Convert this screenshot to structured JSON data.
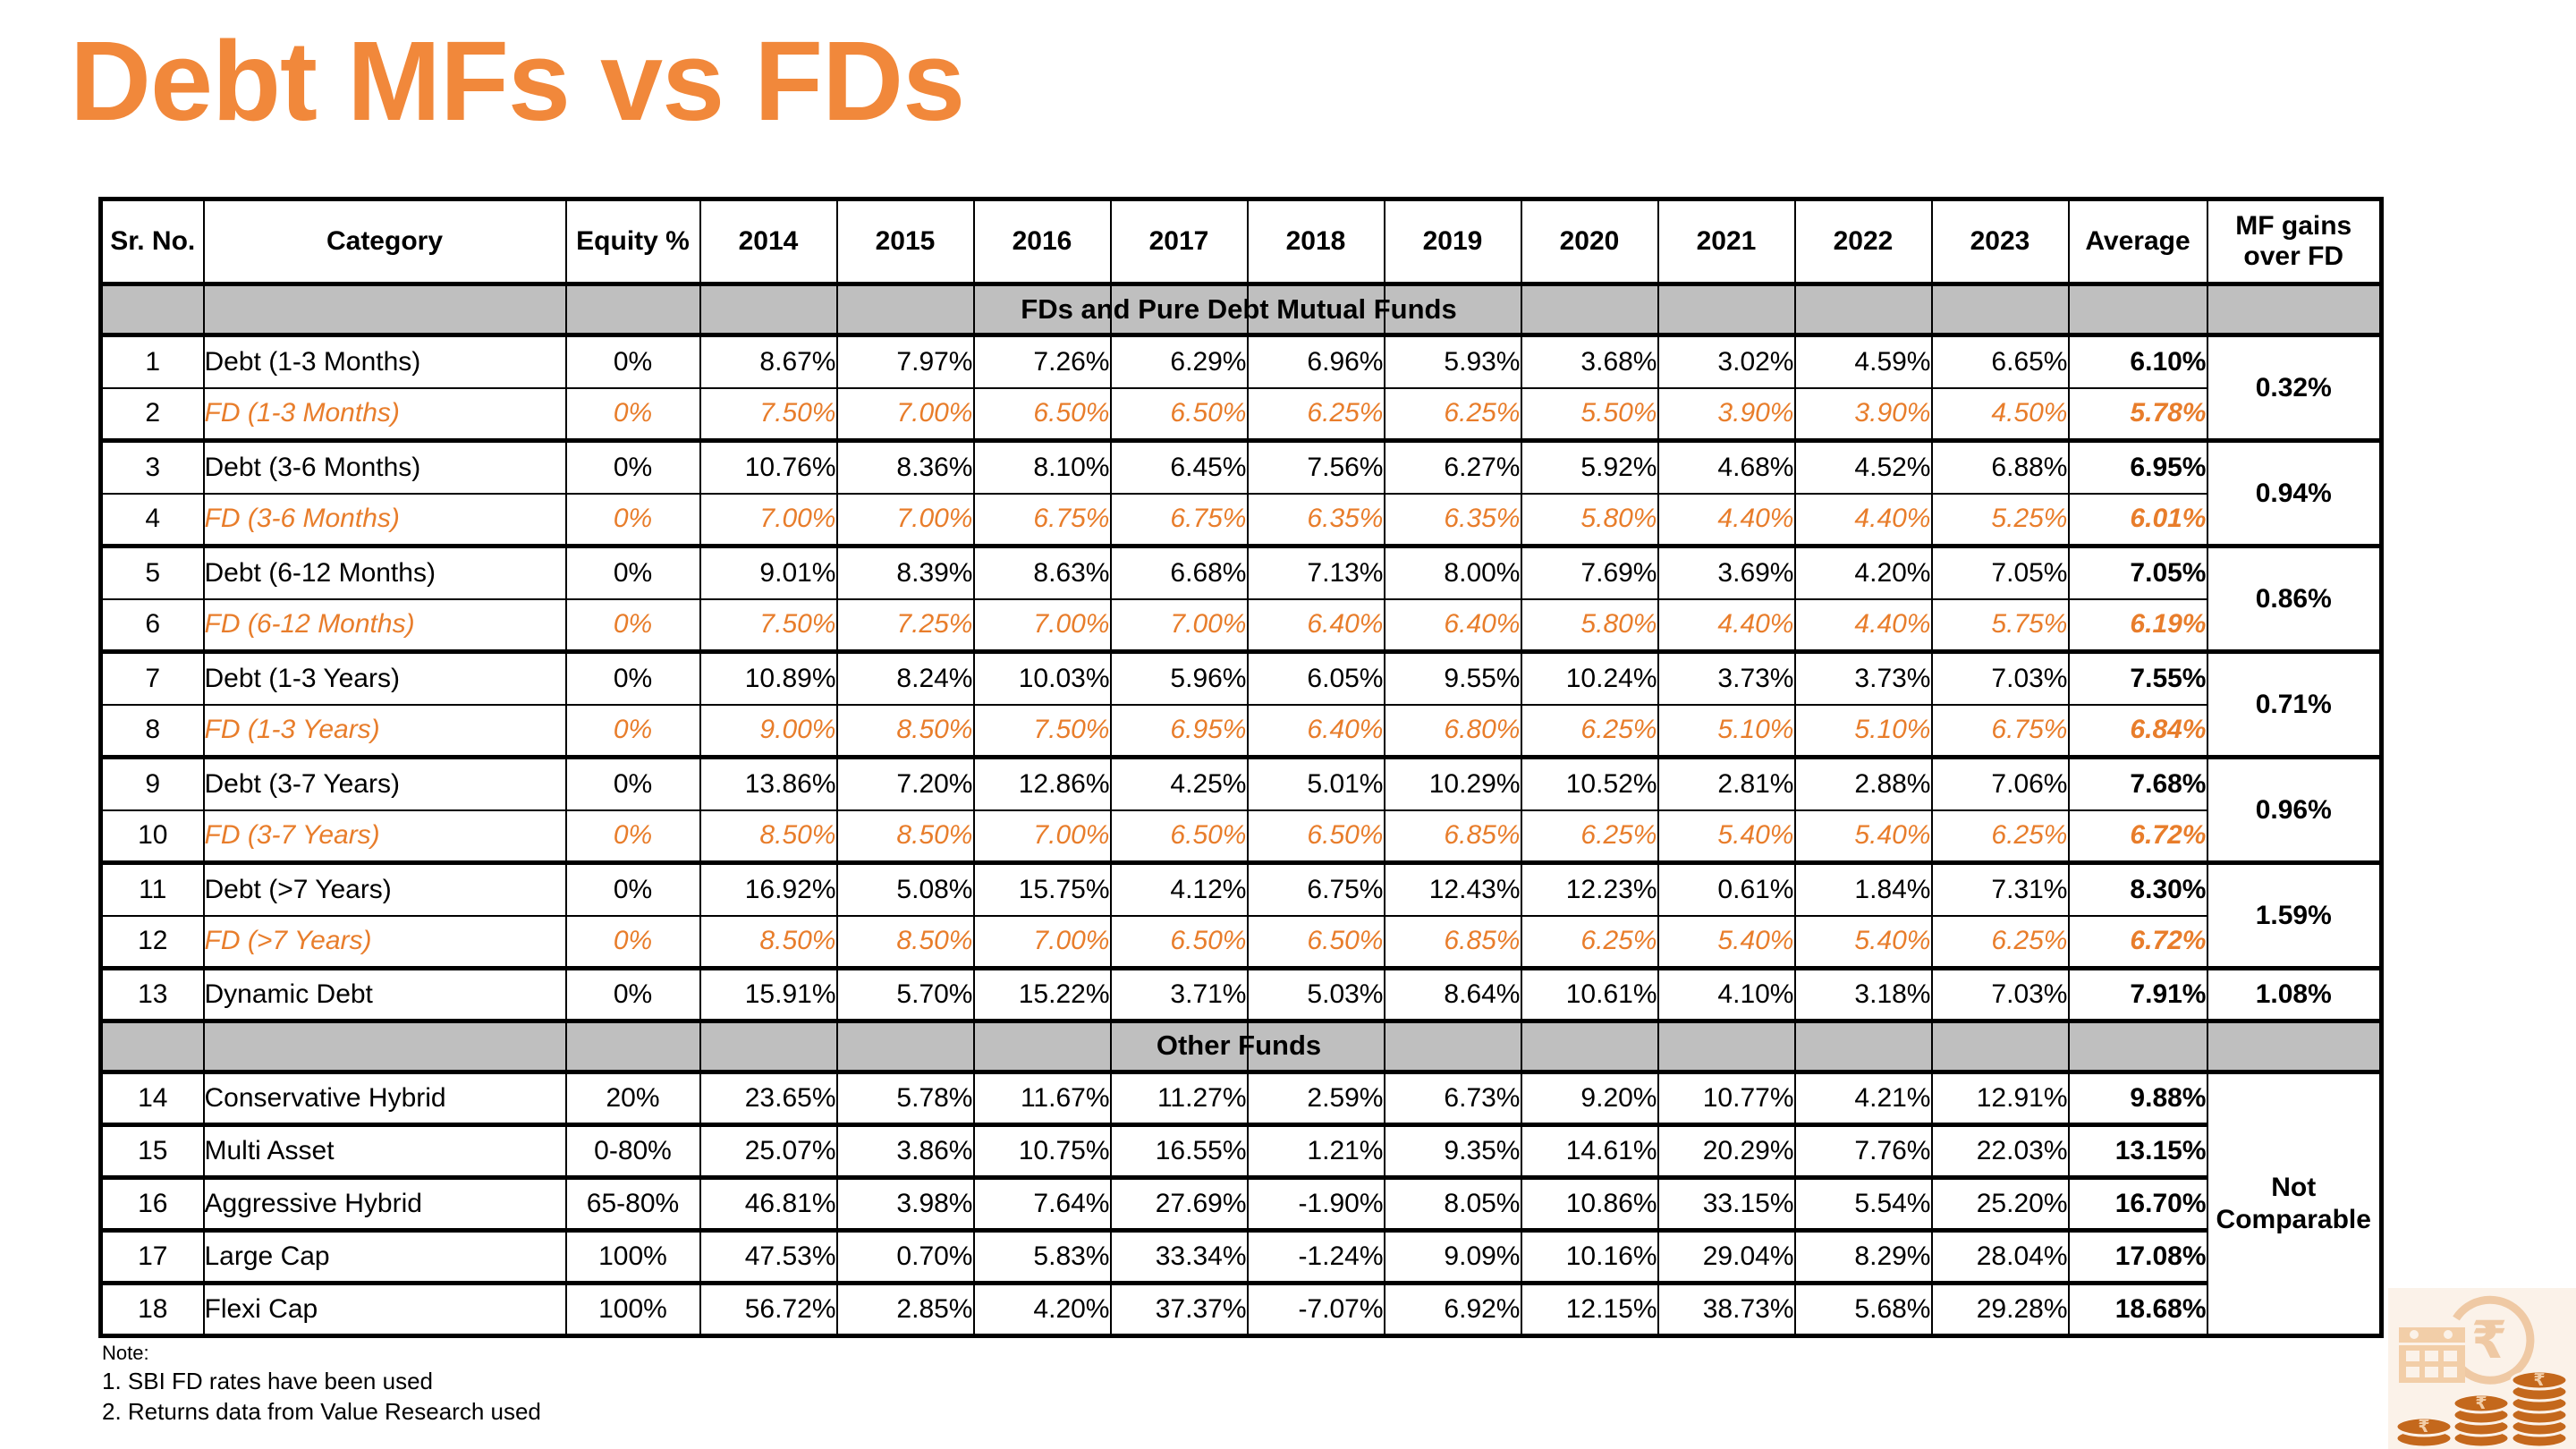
{
  "title": "Debt MFs vs FDs",
  "colors": {
    "title_orange": "#F1883B",
    "fd_orange": "#E87D2B",
    "band_gray": "#BFBFBF",
    "border_black": "#000000",
    "icon_light_tan": "#F2CEA8",
    "icon_dark_orange": "#C4681C"
  },
  "table": {
    "columns": [
      "Sr. No.",
      "Category",
      "Equity %",
      "2014",
      "2015",
      "2016",
      "2017",
      "2018",
      "2019",
      "2020",
      "2021",
      "2022",
      "2023",
      "Average",
      "MF gains\nover FD"
    ],
    "sections": [
      {
        "header": "FDs and Pure Debt Mutual Funds",
        "rows": [
          {
            "sr": "1",
            "category": "Debt (1-3 Months)",
            "equity": "0%",
            "style": "debt",
            "values": [
              "8.67%",
              "7.97%",
              "7.26%",
              "6.29%",
              "6.96%",
              "5.93%",
              "3.68%",
              "3.02%",
              "4.59%",
              "6.65%"
            ],
            "average": "6.10%",
            "gain": {
              "label": "0.32%",
              "span": 2
            }
          },
          {
            "sr": "2",
            "category": "FD (1-3 Months)",
            "equity": "0%",
            "style": "fd",
            "values": [
              "7.50%",
              "7.00%",
              "6.50%",
              "6.50%",
              "6.25%",
              "6.25%",
              "5.50%",
              "3.90%",
              "3.90%",
              "4.50%"
            ],
            "average": "5.78%"
          },
          {
            "sr": "3",
            "category": "Debt (3-6 Months)",
            "equity": "0%",
            "style": "debt",
            "values": [
              "10.76%",
              "8.36%",
              "8.10%",
              "6.45%",
              "7.56%",
              "6.27%",
              "5.92%",
              "4.68%",
              "4.52%",
              "6.88%"
            ],
            "average": "6.95%",
            "gain": {
              "label": "0.94%",
              "span": 2
            }
          },
          {
            "sr": "4",
            "category": "FD (3-6 Months)",
            "equity": "0%",
            "style": "fd",
            "values": [
              "7.00%",
              "7.00%",
              "6.75%",
              "6.75%",
              "6.35%",
              "6.35%",
              "5.80%",
              "4.40%",
              "4.40%",
              "5.25%"
            ],
            "average": "6.01%"
          },
          {
            "sr": "5",
            "category": "Debt (6-12 Months)",
            "equity": "0%",
            "style": "debt",
            "values": [
              "9.01%",
              "8.39%",
              "8.63%",
              "6.68%",
              "7.13%",
              "8.00%",
              "7.69%",
              "3.69%",
              "4.20%",
              "7.05%"
            ],
            "average": "7.05%",
            "gain": {
              "label": "0.86%",
              "span": 2
            }
          },
          {
            "sr": "6",
            "category": "FD (6-12 Months)",
            "equity": "0%",
            "style": "fd",
            "values": [
              "7.50%",
              "7.25%",
              "7.00%",
              "7.00%",
              "6.40%",
              "6.40%",
              "5.80%",
              "4.40%",
              "4.40%",
              "5.75%"
            ],
            "average": "6.19%"
          },
          {
            "sr": "7",
            "category": "Debt (1-3 Years)",
            "equity": "0%",
            "style": "debt",
            "values": [
              "10.89%",
              "8.24%",
              "10.03%",
              "5.96%",
              "6.05%",
              "9.55%",
              "10.24%",
              "3.73%",
              "3.73%",
              "7.03%"
            ],
            "average": "7.55%",
            "gain": {
              "label": "0.71%",
              "span": 2
            }
          },
          {
            "sr": "8",
            "category": "FD (1-3 Years)",
            "equity": "0%",
            "style": "fd",
            "values": [
              "9.00%",
              "8.50%",
              "7.50%",
              "6.95%",
              "6.40%",
              "6.80%",
              "6.25%",
              "5.10%",
              "5.10%",
              "6.75%"
            ],
            "average": "6.84%"
          },
          {
            "sr": "9",
            "category": "Debt (3-7 Years)",
            "equity": "0%",
            "style": "debt",
            "values": [
              "13.86%",
              "7.20%",
              "12.86%",
              "4.25%",
              "5.01%",
              "10.29%",
              "10.52%",
              "2.81%",
              "2.88%",
              "7.06%"
            ],
            "average": "7.68%",
            "gain": {
              "label": "0.96%",
              "span": 2
            }
          },
          {
            "sr": "10",
            "category": "FD (3-7 Years)",
            "equity": "0%",
            "style": "fd",
            "values": [
              "8.50%",
              "8.50%",
              "7.00%",
              "6.50%",
              "6.50%",
              "6.85%",
              "6.25%",
              "5.40%",
              "5.40%",
              "6.25%"
            ],
            "average": "6.72%"
          },
          {
            "sr": "11",
            "category": "Debt (>7 Years)",
            "equity": "0%",
            "style": "debt",
            "values": [
              "16.92%",
              "5.08%",
              "15.75%",
              "4.12%",
              "6.75%",
              "12.43%",
              "12.23%",
              "0.61%",
              "1.84%",
              "7.31%"
            ],
            "average": "8.30%",
            "gain": {
              "label": "1.59%",
              "span": 2
            }
          },
          {
            "sr": "12",
            "category": "FD (>7 Years)",
            "equity": "0%",
            "style": "fd",
            "values": [
              "8.50%",
              "8.50%",
              "7.00%",
              "6.50%",
              "6.50%",
              "6.85%",
              "6.25%",
              "5.40%",
              "5.40%",
              "6.25%"
            ],
            "average": "6.72%"
          },
          {
            "sr": "13",
            "category": "Dynamic Debt",
            "equity": "0%",
            "style": "debt",
            "values": [
              "15.91%",
              "5.70%",
              "15.22%",
              "3.71%",
              "5.03%",
              "8.64%",
              "10.61%",
              "4.10%",
              "3.18%",
              "7.03%"
            ],
            "average": "7.91%",
            "gain": {
              "label": "1.08%",
              "span": 1
            }
          }
        ]
      },
      {
        "header": "Other Funds",
        "rows": [
          {
            "sr": "14",
            "category": "Conservative Hybrid",
            "equity": "20%",
            "style": "other",
            "values": [
              "23.65%",
              "5.78%",
              "11.67%",
              "11.27%",
              "2.59%",
              "6.73%",
              "9.20%",
              "10.77%",
              "4.21%",
              "12.91%"
            ],
            "average": "9.88%",
            "gain": {
              "label": "Not Comparable",
              "span": 5
            }
          },
          {
            "sr": "15",
            "category": "Multi Asset",
            "equity": "0-80%",
            "style": "other",
            "values": [
              "25.07%",
              "3.86%",
              "10.75%",
              "16.55%",
              "1.21%",
              "9.35%",
              "14.61%",
              "20.29%",
              "7.76%",
              "22.03%"
            ],
            "average": "13.15%"
          },
          {
            "sr": "16",
            "category": "Aggressive Hybrid",
            "equity": "65-80%",
            "style": "other",
            "values": [
              "46.81%",
              "3.98%",
              "7.64%",
              "27.69%",
              "-1.90%",
              "8.05%",
              "10.86%",
              "33.15%",
              "5.54%",
              "25.20%"
            ],
            "average": "16.70%"
          },
          {
            "sr": "17",
            "category": "Large Cap",
            "equity": "100%",
            "style": "other",
            "values": [
              "47.53%",
              "0.70%",
              "5.83%",
              "33.34%",
              "-1.24%",
              "9.09%",
              "10.16%",
              "29.04%",
              "8.29%",
              "28.04%"
            ],
            "average": "17.08%"
          },
          {
            "sr": "18",
            "category": "Flexi Cap",
            "equity": "100%",
            "style": "other",
            "values": [
              "56.72%",
              "2.85%",
              "4.20%",
              "37.37%",
              "-7.07%",
              "6.92%",
              "12.15%",
              "38.73%",
              "5.68%",
              "29.28%"
            ],
            "average": "18.68%"
          }
        ]
      }
    ]
  },
  "notes": [
    "Note:",
    "1. SBI FD rates have been used",
    "2. Returns data from Value Research used"
  ],
  "icon": {
    "name": "rupee-coins-calendar",
    "rupee_symbol": "₹"
  }
}
